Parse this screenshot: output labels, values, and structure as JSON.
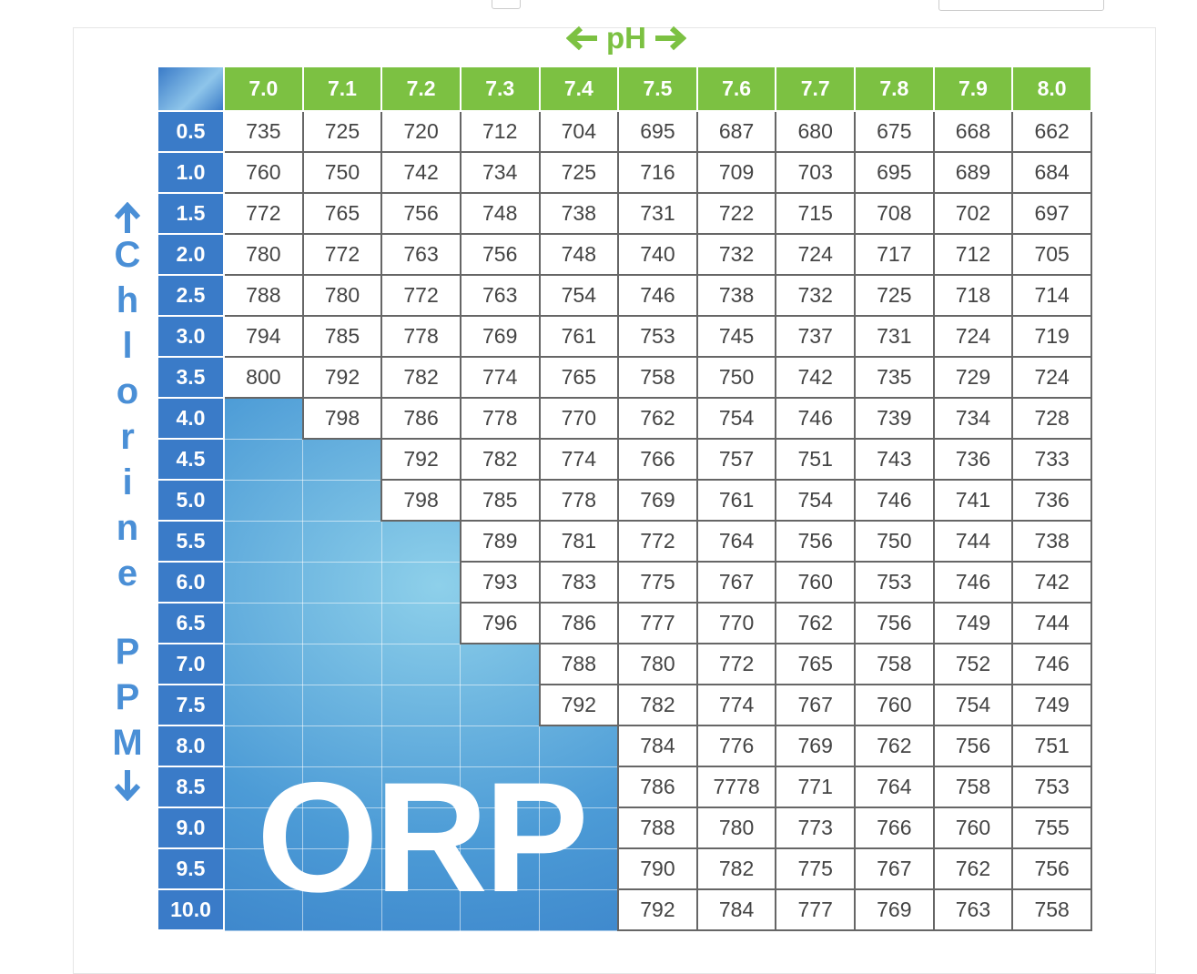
{
  "title": "pH",
  "side_label": {
    "word1": "Chlorine",
    "word2": "PPM"
  },
  "watermark": "ORP",
  "table": {
    "columns": [
      "7.0",
      "7.1",
      "7.2",
      "7.3",
      "7.4",
      "7.5",
      "7.6",
      "7.7",
      "7.8",
      "7.9",
      "8.0"
    ],
    "rows": [
      {
        "label": "0.5",
        "values": [
          735,
          725,
          720,
          712,
          704,
          695,
          687,
          680,
          675,
          668,
          662
        ]
      },
      {
        "label": "1.0",
        "values": [
          760,
          750,
          742,
          734,
          725,
          716,
          709,
          703,
          695,
          689,
          684
        ]
      },
      {
        "label": "1.5",
        "values": [
          772,
          765,
          756,
          748,
          738,
          731,
          722,
          715,
          708,
          702,
          697
        ]
      },
      {
        "label": "2.0",
        "values": [
          780,
          772,
          763,
          756,
          748,
          740,
          732,
          724,
          717,
          712,
          705
        ]
      },
      {
        "label": "2.5",
        "values": [
          788,
          780,
          772,
          763,
          754,
          746,
          738,
          732,
          725,
          718,
          714
        ]
      },
      {
        "label": "3.0",
        "values": [
          794,
          785,
          778,
          769,
          761,
          753,
          745,
          737,
          731,
          724,
          719
        ]
      },
      {
        "label": "3.5",
        "values": [
          800,
          792,
          782,
          774,
          765,
          758,
          750,
          742,
          735,
          729,
          724
        ]
      },
      {
        "label": "4.0",
        "values": [
          null,
          798,
          786,
          778,
          770,
          762,
          754,
          746,
          739,
          734,
          728
        ]
      },
      {
        "label": "4.5",
        "values": [
          null,
          null,
          792,
          782,
          774,
          766,
          757,
          751,
          743,
          736,
          733
        ]
      },
      {
        "label": "5.0",
        "values": [
          null,
          null,
          798,
          785,
          778,
          769,
          761,
          754,
          746,
          741,
          736
        ]
      },
      {
        "label": "5.5",
        "values": [
          null,
          null,
          null,
          789,
          781,
          772,
          764,
          756,
          750,
          744,
          738
        ]
      },
      {
        "label": "6.0",
        "values": [
          null,
          null,
          null,
          793,
          783,
          775,
          767,
          760,
          753,
          746,
          742
        ]
      },
      {
        "label": "6.5",
        "values": [
          null,
          null,
          null,
          796,
          786,
          777,
          770,
          762,
          756,
          749,
          744
        ]
      },
      {
        "label": "7.0",
        "values": [
          null,
          null,
          null,
          null,
          788,
          780,
          772,
          765,
          758,
          752,
          746
        ]
      },
      {
        "label": "7.5",
        "values": [
          null,
          null,
          null,
          null,
          792,
          782,
          774,
          767,
          760,
          754,
          749
        ]
      },
      {
        "label": "8.0",
        "values": [
          null,
          null,
          null,
          null,
          null,
          784,
          776,
          769,
          762,
          756,
          751
        ]
      },
      {
        "label": "8.5",
        "values": [
          null,
          null,
          null,
          null,
          null,
          786,
          7778,
          771,
          764,
          758,
          753
        ]
      },
      {
        "label": "9.0",
        "values": [
          null,
          null,
          null,
          null,
          null,
          788,
          780,
          773,
          766,
          760,
          755
        ]
      },
      {
        "label": "9.5",
        "values": [
          null,
          null,
          null,
          null,
          null,
          790,
          782,
          775,
          767,
          762,
          756
        ]
      },
      {
        "label": "10.0",
        "values": [
          null,
          null,
          null,
          null,
          null,
          792,
          784,
          777,
          769,
          763,
          758
        ]
      }
    ]
  }
}
